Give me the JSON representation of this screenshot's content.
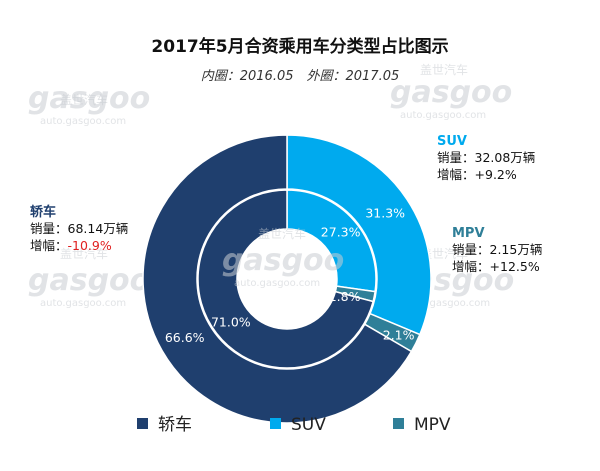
{
  "chart_data": {
    "type": "pie",
    "title": "2017年5月合资乘用车分类型占比图示",
    "subtitle": "内圈：2016.05　外圈：2017.05",
    "categories": [
      "轿车",
      "SUV",
      "MPV"
    ],
    "series": [
      {
        "values": [
          71.0,
          27.3,
          1.8
        ]
      },
      {
        "values": [
          66.6,
          31.3,
          2.1
        ]
      }
    ],
    "colors": [
      "#1f3f6e",
      "#00aaee",
      "#2f7f98"
    ],
    "annotations": [
      {
        "name": "轿车",
        "sales": "销量：68.14万辆",
        "growth_label": "增幅：",
        "growth": "-10.9%",
        "growth_color": "#e02020"
      },
      {
        "name": "SUV",
        "sales": "销量：32.08万辆",
        "growth_label": "增幅：",
        "growth": "+9.2%",
        "growth_color": "#111111"
      },
      {
        "name": "MPV",
        "sales": "销量：2.15万辆",
        "growth_label": "增幅：",
        "growth": "+12.5%",
        "growth_color": "#111111"
      }
    ],
    "legend": [
      "轿车",
      "SUV",
      "MPV"
    ],
    "legend_position": "bottom"
  },
  "watermark": {
    "logo": "gasgoo",
    "cn": "盖世汽车",
    "url": "auto.gasgoo.com"
  }
}
